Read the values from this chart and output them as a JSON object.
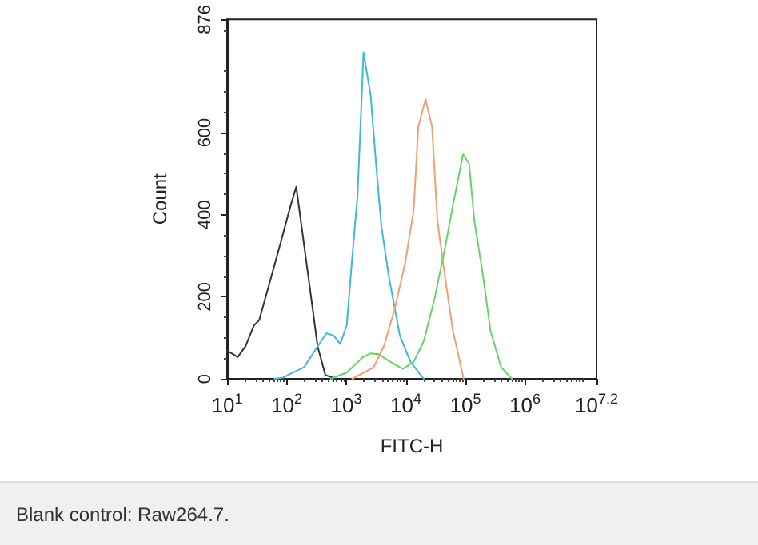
{
  "chart_data": {
    "type": "line",
    "xlabel": "FITC-H",
    "ylabel": "Count",
    "log": "x",
    "grid": false,
    "marker": "none",
    "line_style": "solid",
    "xlim": [
      10,
      15848932
    ],
    "xticks": [
      {
        "value": 10,
        "label": "10$^{1}$"
      },
      {
        "value": 100,
        "label": "10$^{2}$"
      },
      {
        "value": 1000,
        "label": "10$^{3}$"
      },
      {
        "value": 10000,
        "label": "10$^{4}$"
      },
      {
        "value": 100000,
        "label": "10$^{5}$"
      },
      {
        "value": 1000000,
        "label": "10$^{6}$"
      },
      {
        "value": 15848932,
        "label": "10$^{7.2}$"
      }
    ],
    "ylim": [
      0,
      876
    ],
    "yticks": [
      0,
      200,
      400,
      600,
      876
    ],
    "series": [
      {
        "color": "#333333",
        "x": [
          10,
          15.1,
          20.4,
          28.2,
          34.7,
          51.3,
          77.6,
          117,
          145,
          178,
          240,
          331,
          447,
          676
        ],
        "values": [
          69,
          53,
          79,
          130,
          143,
          232,
          327,
          423,
          468,
          372,
          232,
          79,
          9,
          0
        ]
      },
      {
        "color": "#3fb8d8",
        "x": [
          63,
          87,
          195,
          331,
          468,
          617,
          794,
          1020,
          1260,
          1550,
          1950,
          2570,
          3160,
          3890,
          5250,
          7940,
          12000,
          20000
        ],
        "values": [
          0,
          3,
          28,
          79,
          111,
          105,
          85,
          130,
          296,
          448,
          796,
          691,
          525,
          372,
          245,
          105,
          41,
          0
        ]
      },
      {
        "color": "#f0a070",
        "x": [
          1260,
          2880,
          4270,
          6460,
          9770,
          13500,
          16200,
          21400,
          27500,
          33900,
          45700,
          61700,
          93300
        ],
        "values": [
          0,
          28,
          79,
          168,
          283,
          410,
          615,
          681,
          615,
          385,
          245,
          117,
          0
        ]
      },
      {
        "color": "#66d466",
        "x": [
          550,
          1020,
          1910,
          2570,
          3470,
          5250,
          8910,
          13500,
          20000,
          30200,
          45700,
          61700,
          91200,
          115000,
          141000,
          195000,
          263000,
          398000,
          603000
        ],
        "values": [
          0,
          15,
          53,
          62,
          60,
          43,
          24,
          41,
          92,
          194,
          321,
          423,
          547,
          525,
          385,
          257,
          117,
          28,
          0
        ]
      }
    ],
    "annotations": [
      "Blank control: Raw264.7."
    ]
  }
}
